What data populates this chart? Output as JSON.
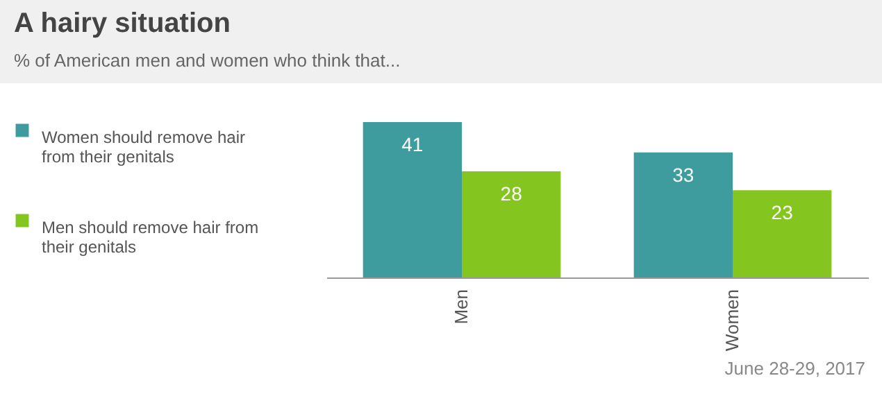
{
  "chart_data": {
    "type": "bar",
    "title": "A hairy situation",
    "subtitle": "% of American men and women who think that...",
    "categories": [
      "Men",
      "Women"
    ],
    "series": [
      {
        "name": "Women should remove hair from their genitals",
        "color": "#3f9c9e",
        "values": [
          41,
          33
        ]
      },
      {
        "name": "Men should remove hair from their genitals",
        "color": "#84c51f",
        "values": [
          28,
          23
        ]
      }
    ],
    "data_labels": true,
    "legend": "left",
    "annotations": [
      "June 28-29, 2017"
    ]
  }
}
